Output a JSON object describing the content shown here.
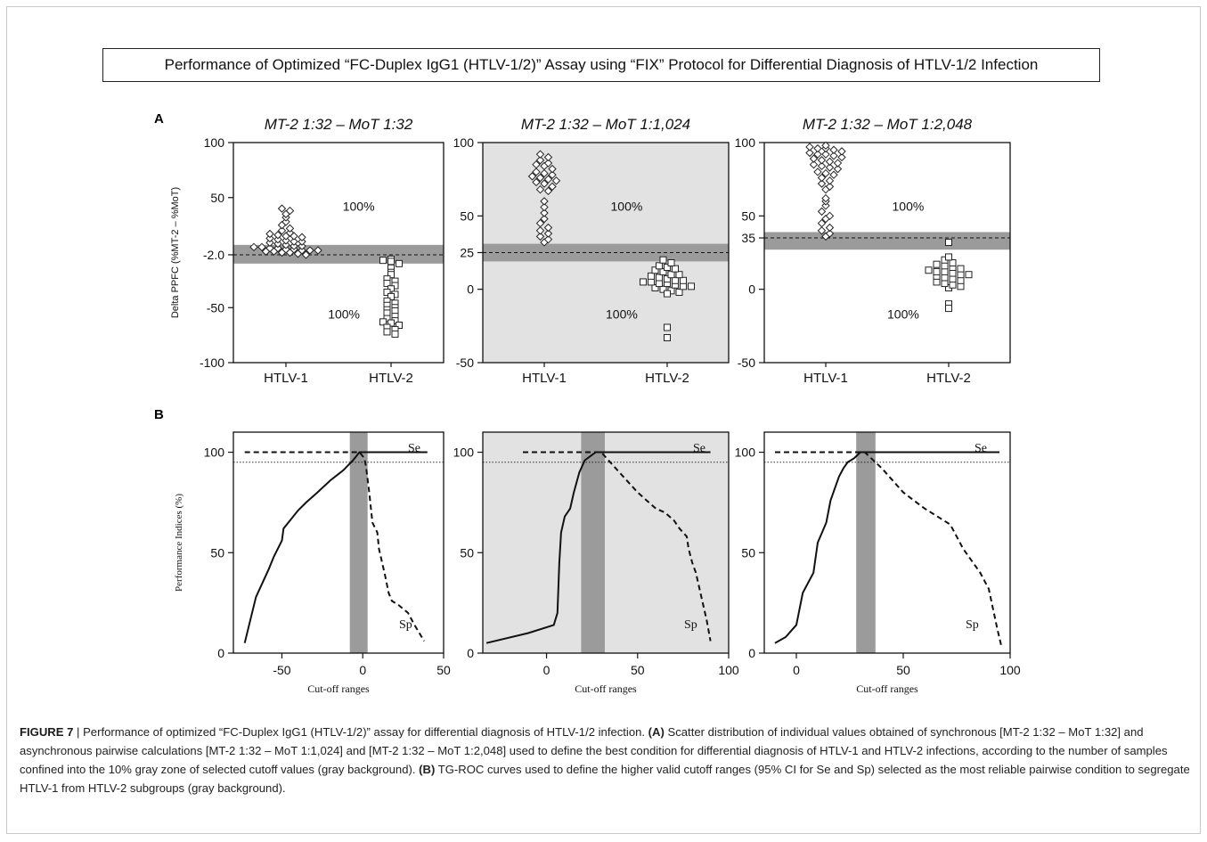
{
  "figure_title": "Performance of Optimized “FC-Duplex IgG1 (HTLV-1/2)” Assay using “FIX” Protocol for Differential Diagnosis of HTLV-1/2 Infection",
  "panel_labels": [
    "A",
    "B"
  ],
  "colors": {
    "gray_zone": "#9b9b9b",
    "gray_background": "#e2e2e2",
    "axis": "#111111"
  },
  "caption": {
    "figure_label": "FIGURE 7",
    "separator": " | ",
    "intro": "Performance of optimized “FC-Duplex IgG1 (HTLV-1/2)” assay for differential diagnosis of HTLV-1/2 infection. ",
    "label_a": "(A)",
    "text_a": " Scatter distribution of individual values obtained of synchronous [MT-2 1:32 – MoT 1:32] and asynchronous pairwise calculations [MT-2 1:32 – MoT 1:1,024] and [MT-2 1:32 – MoT 1:2,048] used to define the best condition for differential diagnosis of HTLV-1 and HTLV-2 infections, according to the number of samples confined into the 10% gray zone of selected cutoff values (gray background). ",
    "label_b": "(B)",
    "text_b": " TG-ROC curves used to define the higher valid cutoff ranges (95% CI for Se and Sp) selected as the most reliable pairwise condition to segregate HTLV-1 from HTLV-2 subgroups (gray background)."
  },
  "chart_data": [
    {
      "type": "scatter",
      "panel": "A",
      "title": "MT-2 1:32 – MoT 1:32",
      "ylabel": "Delta PPFC (%MT-2 – %MoT)",
      "xlabel": "",
      "categories": [
        "HTLV-1",
        "HTLV-2"
      ],
      "ylim": [
        -100,
        100
      ],
      "yticks": [
        100,
        50,
        -2.0,
        -50,
        -100
      ],
      "ytick_labels": [
        "100",
        "50",
        "-2.0",
        "-50",
        "-100"
      ],
      "cutoff": -2.0,
      "gray_zone": [
        -10,
        7
      ],
      "gray_background": false,
      "series": [
        {
          "name": "HTLV-1",
          "marker": "diamond",
          "values": [
            40,
            38,
            35,
            32,
            28,
            25,
            22,
            20,
            18,
            17,
            16,
            15,
            15,
            14,
            13,
            12,
            11,
            10,
            10,
            9,
            8,
            7,
            6,
            6,
            5,
            5,
            4,
            4,
            3,
            3,
            2,
            2,
            2,
            1,
            1,
            0,
            0,
            -1,
            -2
          ]
        },
        {
          "name": "HTLV-2",
          "marker": "square",
          "values": [
            -6,
            -7,
            -8,
            -10,
            -14,
            -18,
            -20,
            -24,
            -26,
            -28,
            -30,
            -33,
            -36,
            -38,
            -40,
            -44,
            -46,
            -48,
            -50,
            -52,
            -53,
            -55,
            -58,
            -60,
            -62,
            -63,
            -64,
            -66,
            -68,
            -70,
            -72,
            -74
          ]
        }
      ],
      "annotations": [
        {
          "text": "100%",
          "near": "HTLV-1"
        },
        {
          "text": "100%",
          "near": "HTLV-2"
        }
      ]
    },
    {
      "type": "scatter",
      "panel": "A",
      "title": "MT-2 1:32 – MoT 1:1,024",
      "ylabel": "",
      "xlabel": "",
      "categories": [
        "HTLV-1",
        "HTLV-2"
      ],
      "ylim": [
        -50,
        100
      ],
      "yticks": [
        100,
        50,
        25,
        0,
        -50
      ],
      "ytick_labels": [
        "100",
        "50",
        "25",
        "0",
        "-50"
      ],
      "cutoff": 25,
      "gray_zone": [
        19,
        31
      ],
      "gray_background": true,
      "series": [
        {
          "name": "HTLV-1",
          "marker": "diamond",
          "values": [
            92,
            90,
            88,
            86,
            85,
            84,
            82,
            80,
            79,
            78,
            77,
            76,
            75,
            74,
            73,
            72,
            70,
            68,
            67,
            60,
            56,
            52,
            48,
            45,
            42,
            40,
            38,
            36,
            34,
            32
          ]
        },
        {
          "name": "HTLV-2",
          "marker": "square",
          "values": [
            20,
            18,
            16,
            15,
            14,
            13,
            12,
            10,
            10,
            9,
            8,
            7,
            6,
            6,
            5,
            5,
            4,
            4,
            3,
            2,
            2,
            1,
            0,
            -1,
            -2,
            -3,
            -26,
            -33
          ]
        }
      ],
      "annotations": [
        {
          "text": "100%",
          "near": "HTLV-1"
        },
        {
          "text": "100%",
          "near": "HTLV-2"
        }
      ]
    },
    {
      "type": "scatter",
      "panel": "A",
      "title": "MT-2 1:32 – MoT 1:2,048",
      "ylabel": "",
      "xlabel": "",
      "categories": [
        "HTLV-1",
        "HTLV-2"
      ],
      "ylim": [
        -50,
        100
      ],
      "yticks": [
        100,
        50,
        35,
        0,
        -50
      ],
      "ytick_labels": [
        "100",
        "50",
        "35",
        "0",
        "-50"
      ],
      "cutoff": 35,
      "gray_zone": [
        27,
        39
      ],
      "gray_background": false,
      "series": [
        {
          "name": "HTLV-1",
          "marker": "diamond",
          "values": [
            98,
            97,
            96,
            96,
            95,
            94,
            93,
            92,
            92,
            91,
            90,
            89,
            88,
            87,
            86,
            85,
            84,
            83,
            82,
            80,
            79,
            78,
            76,
            74,
            72,
            70,
            68,
            62,
            60,
            57,
            53,
            50,
            48,
            45,
            42,
            40,
            38,
            36
          ]
        },
        {
          "name": "HTLV-2",
          "marker": "square",
          "values": [
            32,
            22,
            20,
            18,
            17,
            16,
            15,
            14,
            13,
            12,
            12,
            11,
            10,
            10,
            9,
            8,
            7,
            6,
            5,
            4,
            3,
            2,
            1,
            -10,
            -13
          ]
        }
      ],
      "annotations": [
        {
          "text": "100%",
          "near": "HTLV-1"
        },
        {
          "text": "100%",
          "near": "HTLV-2"
        }
      ]
    },
    {
      "type": "line",
      "panel": "B",
      "title": "",
      "ylabel": "Performance Indices (%)",
      "xlabel": "Cut-off ranges",
      "xlim": [
        -80,
        50
      ],
      "xticks": [
        -50,
        0,
        50
      ],
      "ylim": [
        0,
        110
      ],
      "yticks": [
        0,
        50,
        100
      ],
      "threshold_line": 95,
      "gray_zone": [
        -8,
        3
      ],
      "gray_background": false,
      "series": [
        {
          "name": "Se",
          "style": "solid",
          "x": [
            -73,
            -70,
            -66,
            -62,
            -58,
            -55,
            -50,
            -49,
            -45,
            -40,
            -35,
            -28,
            -20,
            -12,
            -6,
            -2,
            40
          ],
          "y": [
            5,
            15,
            28,
            35,
            42,
            48,
            56,
            62,
            66,
            71,
            75,
            80,
            86,
            91,
            96,
            100,
            100
          ]
        },
        {
          "name": "Sp",
          "style": "dashed",
          "x": [
            -73,
            -6,
            -2,
            1,
            2,
            4,
            6,
            9,
            10,
            12,
            14,
            16,
            18,
            20,
            22,
            25,
            28,
            32,
            38
          ],
          "y": [
            100,
            100,
            100,
            97,
            93,
            80,
            65,
            60,
            52,
            45,
            38,
            30,
            26,
            25,
            24,
            22,
            20,
            14,
            6
          ]
        }
      ]
    },
    {
      "type": "line",
      "panel": "B",
      "title": "",
      "ylabel": "",
      "xlabel": "Cut-off ranges",
      "xlim": [
        -35,
        100
      ],
      "xticks": [
        0,
        50,
        100
      ],
      "ylim": [
        0,
        110
      ],
      "yticks": [
        0,
        50,
        100
      ],
      "threshold_line": 95,
      "gray_zone": [
        19,
        32
      ],
      "gray_background": true,
      "series": [
        {
          "name": "Se",
          "style": "solid",
          "x": [
            -33,
            -10,
            4,
            6,
            7,
            8,
            10,
            13,
            15,
            18,
            21,
            24,
            27,
            90
          ],
          "y": [
            5,
            10,
            14,
            20,
            45,
            60,
            68,
            72,
            80,
            90,
            96,
            98,
            100,
            100
          ]
        },
        {
          "name": "Sp",
          "style": "dashed",
          "x": [
            -13,
            25,
            30,
            34,
            38,
            42,
            46,
            50,
            55,
            60,
            65,
            70,
            73,
            75,
            77,
            78,
            80,
            82,
            84,
            86,
            88,
            90
          ],
          "y": [
            100,
            100,
            100,
            96,
            92,
            88,
            84,
            80,
            76,
            72,
            70,
            66,
            62,
            60,
            58,
            52,
            45,
            40,
            32,
            24,
            16,
            6
          ]
        }
      ]
    },
    {
      "type": "line",
      "panel": "B",
      "title": "",
      "ylabel": "",
      "xlabel": "Cut-off ranges",
      "xlim": [
        -15,
        100
      ],
      "xticks": [
        0,
        50,
        100
      ],
      "ylim": [
        0,
        110
      ],
      "yticks": [
        0,
        50,
        100
      ],
      "threshold_line": 95,
      "gray_zone": [
        28,
        37
      ],
      "gray_background": false,
      "series": [
        {
          "name": "Se",
          "style": "solid",
          "x": [
            -10,
            -5,
            0,
            3,
            8,
            10,
            14,
            16,
            18,
            20,
            22,
            24,
            27,
            30,
            95
          ],
          "y": [
            5,
            8,
            14,
            30,
            40,
            55,
            65,
            76,
            82,
            88,
            92,
            95,
            97,
            100,
            100
          ]
        },
        {
          "name": "Sp",
          "style": "dashed",
          "x": [
            -10,
            28,
            32,
            35,
            40,
            45,
            50,
            55,
            60,
            66,
            72,
            75,
            78,
            82,
            86,
            90,
            92,
            94,
            96
          ],
          "y": [
            100,
            100,
            100,
            97,
            92,
            86,
            80,
            76,
            72,
            68,
            64,
            58,
            52,
            46,
            40,
            32,
            22,
            12,
            3
          ]
        }
      ]
    }
  ]
}
